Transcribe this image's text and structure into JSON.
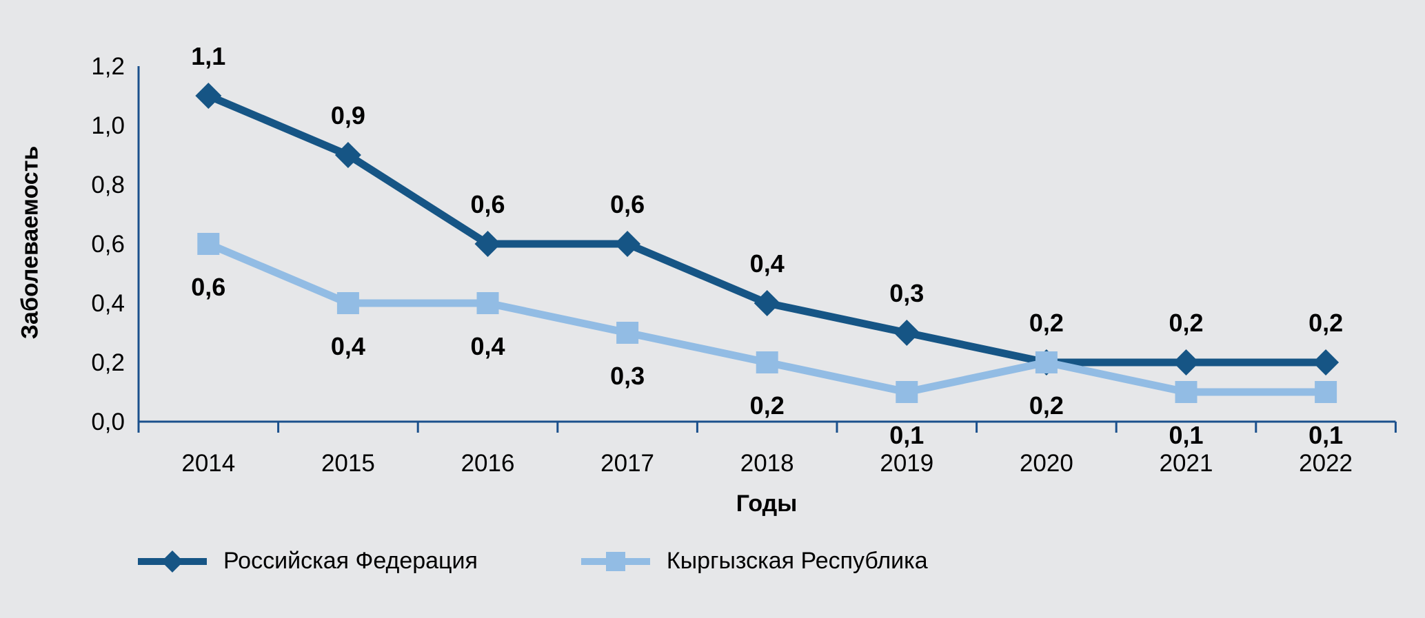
{
  "chart_data": {
    "type": "line",
    "categories": [
      "2014",
      "2015",
      "2016",
      "2017",
      "2018",
      "2019",
      "2020",
      "2021",
      "2022"
    ],
    "series": [
      {
        "name": "Российская Федерация",
        "values": [
          1.1,
          0.9,
          0.6,
          0.6,
          0.4,
          0.3,
          0.2,
          0.2,
          0.2
        ],
        "labels": [
          "1,1",
          "0,9",
          "0,6",
          "0,6",
          "0,4",
          "0,3",
          "0,2",
          "0,2",
          "0,2"
        ],
        "color": "#165585",
        "marker": "diamond",
        "label_position": "above"
      },
      {
        "name": "Кыргызская Республика",
        "values": [
          0.6,
          0.4,
          0.4,
          0.3,
          0.2,
          0.1,
          0.2,
          0.1,
          0.1
        ],
        "labels": [
          "0,6",
          "0,4",
          "0,4",
          "0,3",
          "0,2",
          "0,1",
          "0,2",
          "0,1",
          "0,1"
        ],
        "color": "#92BCE4",
        "marker": "square",
        "label_position": "below"
      }
    ],
    "title": "",
    "xlabel": "Годы",
    "ylabel": "Заболеваемость",
    "ylim": [
      0,
      1.2
    ],
    "ytick_step": 0.2,
    "ytick_labels": [
      "0,0",
      "0,2",
      "0,4",
      "0,6",
      "0,8",
      "1,0",
      "1,2"
    ],
    "decimal_separator": ",",
    "grid": false,
    "legend_position": "bottom",
    "axis_color": "#1B508C",
    "background_color": "#E6E7E9",
    "text_color": "#000000"
  }
}
